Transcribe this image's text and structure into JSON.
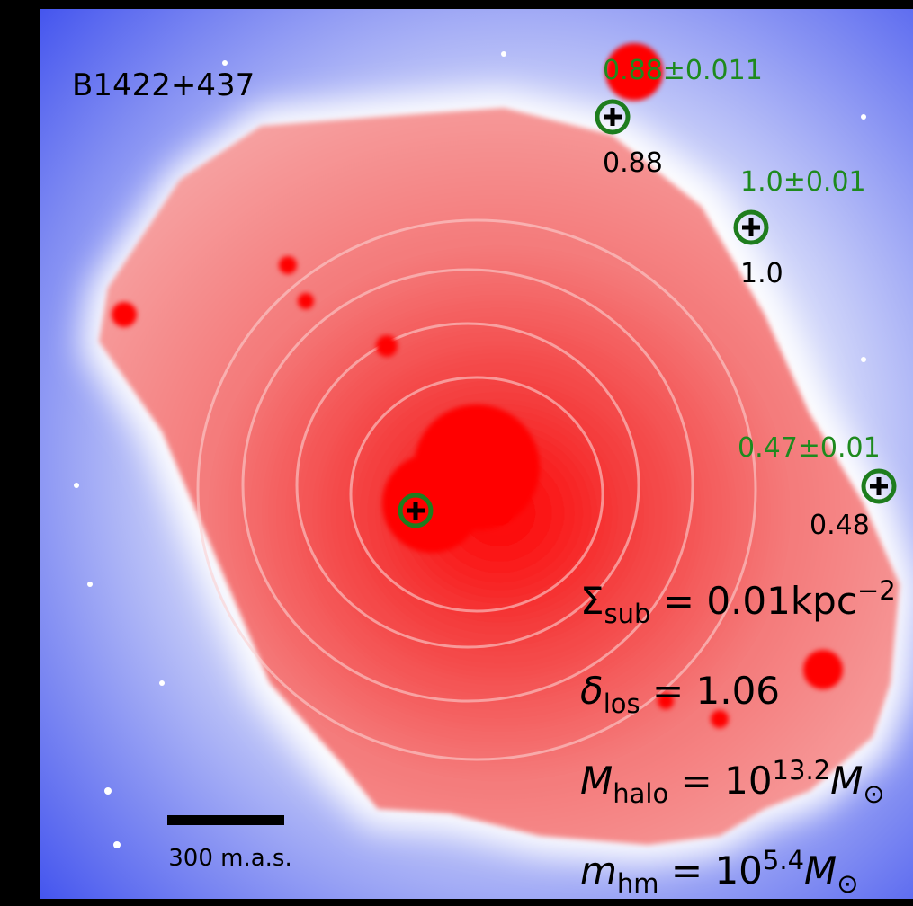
{
  "title": "B1422+437",
  "images": [
    {
      "measured": "0.88±0.011",
      "model": "0.88"
    },
    {
      "measured": "1.0±0.01",
      "model": "1.0"
    },
    {
      "measured": "0.47±0.01",
      "model": "0.48"
    }
  ],
  "scale_bar": "300 m.a.s.",
  "parameters": [
    {
      "symbol": "Σ",
      "subscript": "sub",
      "text": " = 0.01kpc",
      "superscript": "−2"
    },
    {
      "symbol": "δ",
      "subscript": "los",
      "text": " = 1.06"
    },
    {
      "symbol": "M",
      "subscript": "halo",
      "text": " = 10",
      "superscript": "13.2",
      "suffix": "M",
      "suffix_subscript": "⊙"
    },
    {
      "symbol": "m",
      "subscript": "hm",
      "text": " = 10",
      "superscript": "5.4",
      "suffix": "M",
      "suffix_subscript": "⊙"
    }
  ]
}
